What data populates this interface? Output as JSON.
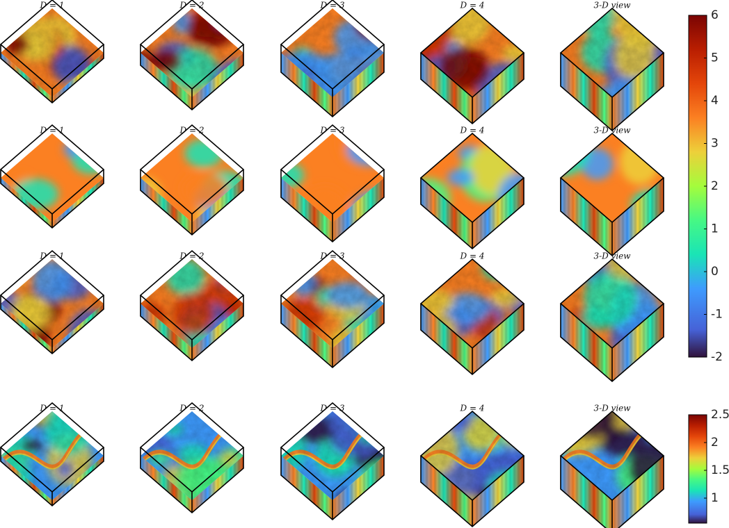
{
  "columns": [
    "D = 1",
    "D = 2",
    "D = 3",
    "D = 4",
    "3-D view"
  ],
  "rows": [
    {
      "name": "row-1",
      "style": "rough"
    },
    {
      "name": "row-2",
      "style": "smooth"
    },
    {
      "name": "row-3",
      "style": "rough"
    },
    {
      "name": "row-4",
      "style": "channel"
    }
  ],
  "colorbars": [
    {
      "name": "colorbar-top",
      "min": -2,
      "max": 6,
      "ticks": [
        "6",
        "5",
        "4",
        "3",
        "2",
        "1",
        "0",
        "-1",
        "-2"
      ]
    },
    {
      "name": "colorbar-bottom",
      "min": 0.55,
      "max": 2.5,
      "ticks": [
        "2.5",
        "2",
        "1.5",
        "1"
      ]
    }
  ],
  "colormap": "turbo",
  "colors": {
    "dark_red": "#7a0403",
    "red": "#d23105",
    "orange": "#fb8022",
    "yellow": "#edd03a",
    "green": "#46f884",
    "cyan": "#1ae4b6",
    "blue": "#3e9bfe",
    "indigo": "#4662d7",
    "navy": "#30123b"
  }
}
